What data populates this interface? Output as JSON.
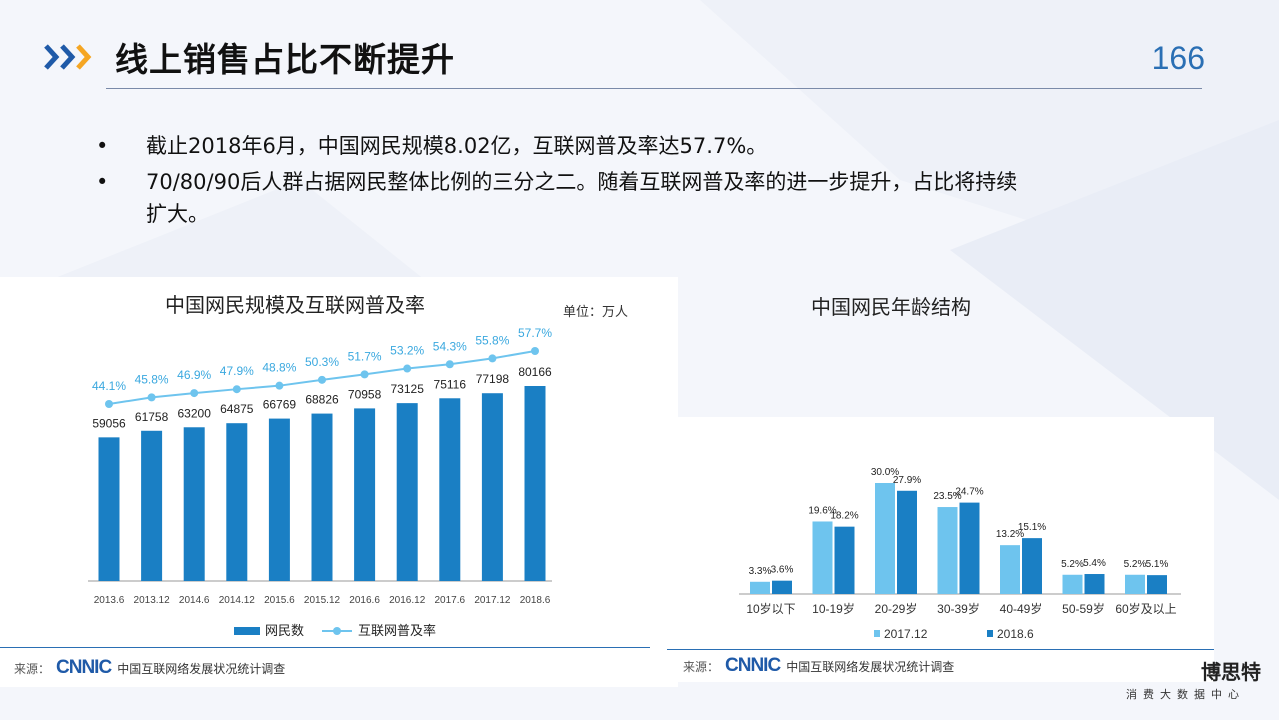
{
  "header": {
    "title": "线上销售占比不断提升",
    "page_number": "166"
  },
  "bullets": [
    {
      "symbol": "•",
      "text": "截止2018年6月，中国网民规模8.02亿，互联网普及率达57.7%。"
    },
    {
      "symbol": "•",
      "text": "70/80/90后人群占据网民整体比例的三分之二。随着互联网普及率的进一步提升，占比将持续扩大。"
    }
  ],
  "left_chart": {
    "unit_label": "单位：万人",
    "source_label": "来源：",
    "source_logo": "CNNIC",
    "source_org": "中国互联网络发展状况统计调查"
  },
  "right_chart": {
    "source_label": "来源：",
    "source_logo": "CNNIC",
    "source_org": "中国互联网络发展状况统计调查"
  },
  "brand": {
    "name": "博思特",
    "subtitle": "消费大数据中心"
  },
  "colors": {
    "accent_blue": "#1a7fc4",
    "light_blue": "#6ec4ee",
    "chevron_dark": "#1f5aa8",
    "chevron_orange": "#f5a623"
  },
  "chart_data": [
    {
      "type": "bar",
      "title": "中国网民规模及互联网普及率",
      "categories": [
        "2013.6",
        "2013.12",
        "2014.6",
        "2014.12",
        "2015.6",
        "2015.12",
        "2016.6",
        "2016.12",
        "2017.6",
        "2017.12",
        "2018.6"
      ],
      "series": [
        {
          "name": "网民数",
          "type": "bar",
          "values": [
            59056,
            61758,
            63200,
            64875,
            66769,
            68826,
            70958,
            73125,
            75116,
            77198,
            80166
          ],
          "labels": [
            "59056",
            "61758",
            "63200",
            "64875",
            "66769",
            "68826",
            "70958",
            "73125",
            "75116",
            "77198",
            "80166"
          ]
        },
        {
          "name": "互联网普及率",
          "type": "line",
          "values": [
            44.1,
            45.8,
            46.9,
            47.9,
            48.8,
            50.3,
            51.7,
            53.2,
            54.3,
            55.8,
            57.7
          ],
          "labels": [
            "44.1%",
            "45.8%",
            "46.9%",
            "47.9%",
            "48.8%",
            "50.3%",
            "51.7%",
            "53.2%",
            "54.3%",
            "55.8%",
            "57.7%"
          ]
        }
      ],
      "ylabel": "",
      "xlabel": "",
      "legend": "bottom"
    },
    {
      "type": "bar",
      "title": "中国网民年龄结构",
      "categories": [
        "10岁以下",
        "10-19岁",
        "20-29岁",
        "30-39岁",
        "40-49岁",
        "50-59岁",
        "60岁及以上"
      ],
      "series": [
        {
          "name": "2017.12",
          "values": [
            3.3,
            19.6,
            30.0,
            23.5,
            13.2,
            5.2,
            5.2
          ],
          "labels": [
            "3.3%",
            "19.6%",
            "30.0%",
            "23.5%",
            "13.2%",
            "5.2%",
            "5.2%"
          ]
        },
        {
          "name": "2018.6",
          "values": [
            3.6,
            18.2,
            27.9,
            24.7,
            15.1,
            5.4,
            5.1
          ],
          "labels": [
            "3.6%",
            "18.2%",
            "27.9%",
            "24.7%",
            "15.1%",
            "5.4%",
            "5.1%"
          ]
        }
      ],
      "legend": "bottom"
    }
  ]
}
